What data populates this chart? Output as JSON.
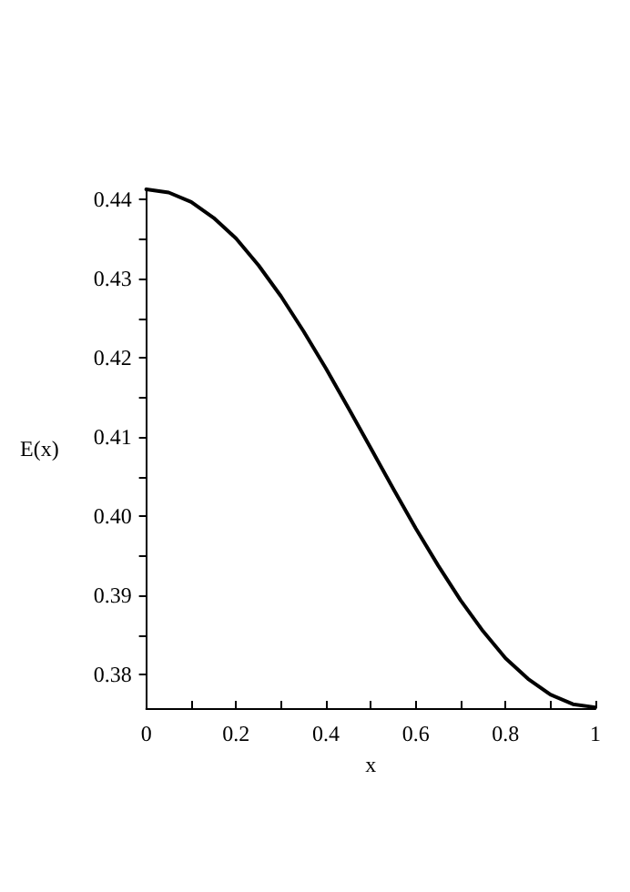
{
  "chart_data": {
    "type": "line",
    "xlabel": "x",
    "ylabel": "E(x)",
    "x": [
      0,
      0.05,
      0.1,
      0.15,
      0.2,
      0.25,
      0.3,
      0.35,
      0.4,
      0.45,
      0.5,
      0.55,
      0.6,
      0.65,
      0.7,
      0.75,
      0.8,
      0.85,
      0.9,
      0.95,
      1
    ],
    "series": [
      {
        "color": "#000000",
        "values": [
          0.4413,
          0.4409,
          0.4397,
          0.4377,
          0.4351,
          0.4317,
          0.4278,
          0.4234,
          0.4187,
          0.4137,
          0.4086,
          0.4035,
          0.3985,
          0.3938,
          0.3894,
          0.3855,
          0.3821,
          0.3795,
          0.3775,
          0.3763,
          0.3759
        ]
      }
    ],
    "xlim": [
      0,
      1
    ],
    "ylim": [
      0.3758,
      0.4413
    ],
    "xticks": [
      0,
      {
        "value": 0.1,
        "label": null
      },
      0.2,
      {
        "value": 0.3,
        "label": null
      },
      0.4,
      {
        "value": 0.5,
        "label": null
      },
      0.6,
      {
        "value": 0.7,
        "label": null
      },
      0.8,
      {
        "value": 0.9,
        "label": null
      },
      1
    ],
    "yticks": [
      {
        "value": 0.38,
        "label": "0.38"
      },
      {
        "value": 0.385,
        "label": null
      },
      {
        "value": 0.39,
        "label": "0.39"
      },
      {
        "value": 0.395,
        "label": null
      },
      {
        "value": 0.4,
        "label": "0.40"
      },
      {
        "value": 0.405,
        "label": null
      },
      {
        "value": 0.41,
        "label": "0.41"
      },
      {
        "value": 0.415,
        "label": null
      },
      {
        "value": 0.42,
        "label": "0.42"
      },
      {
        "value": 0.425,
        "label": null
      },
      {
        "value": 0.43,
        "label": "0.43"
      },
      {
        "value": 0.435,
        "label": null
      },
      {
        "value": 0.44,
        "label": "0.44"
      }
    ],
    "grid": false,
    "marker": "none",
    "line_style": "solid"
  }
}
